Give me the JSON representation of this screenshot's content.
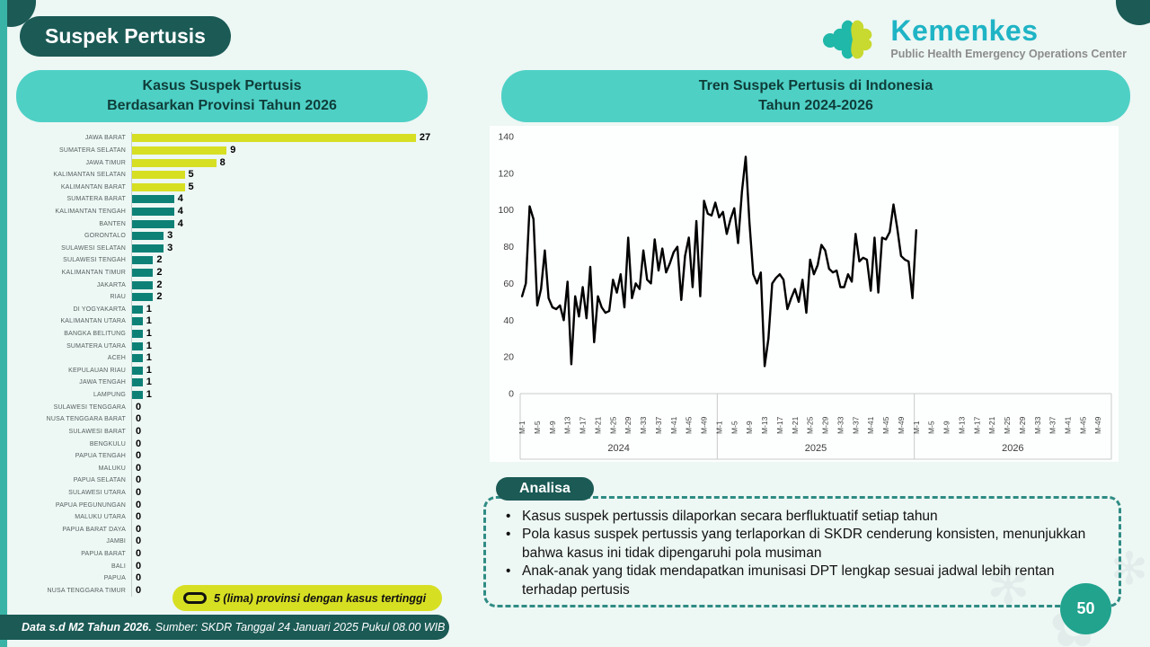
{
  "page": {
    "title": "Suspek Pertusis",
    "page_number": "50",
    "colors": {
      "background": "#edf7f4",
      "dark_teal": "#1b5a55",
      "header_teal": "#4ed0c5",
      "lime": "#d7df23",
      "bar_teal": "#0e8177",
      "page_circle": "#21a38e",
      "line": "#000000"
    }
  },
  "logo": {
    "brand": "Kemenkes",
    "subtitle": "Public Health Emergency Operations Center"
  },
  "left_panel": {
    "header_line1": "Kasus Suspek Pertusis",
    "header_line2": "Berdasarkan Provinsi Tahun 2026",
    "legend_label": "5 (lima) provinsi dengan kasus tertinggi"
  },
  "right_panel": {
    "header_line1": "Tren Suspek Pertusis di Indonesia",
    "header_line2": "Tahun 2024-2026"
  },
  "analysis": {
    "header": "Analisa",
    "bullets": [
      "Kasus suspek pertussis dilaporkan secara berfluktuatif setiap tahun",
      "Pola kasus suspek pertussis yang terlaporkan di SKDR cenderung konsisten, menunjukkan bahwa kasus ini tidak dipengaruhi pola musiman",
      "Anak-anak yang tidak mendapatkan imunisasi DPT lengkap sesuai jadwal lebih rentan terhadap pertusis"
    ]
  },
  "footer": {
    "bold_text": "Data s.d M2 Tahun 2026.",
    "source_text": "Sumber: SKDR Tanggal 24 Januari 2025 Pukul 08.00 WIB"
  },
  "chart_data": [
    {
      "type": "bar",
      "orientation": "horizontal",
      "title": "Kasus Suspek Pertusis Berdasarkan Provinsi Tahun 2026",
      "highlight_top_n": 5,
      "highlight_color": "#d7df23",
      "bar_color": "#0e8177",
      "value_labels": true,
      "categories": [
        "JAWA BARAT",
        "SUMATERA SELATAN",
        "JAWA TIMUR",
        "KALIMANTAN SELATAN",
        "KALIMANTAN BARAT",
        "SUMATERA BARAT",
        "KALIMANTAN TENGAH",
        "BANTEN",
        "GORONTALO",
        "SULAWESI SELATAN",
        "SULAWESI TENGAH",
        "KALIMANTAN TIMUR",
        "JAKARTA",
        "RIAU",
        "DI YOGYAKARTA",
        "KALIMANTAN UTARA",
        "BANGKA BELITUNG",
        "SUMATERA UTARA",
        "ACEH",
        "KEPULAUAN RIAU",
        "JAWA TENGAH",
        "LAMPUNG",
        "SULAWESI TENGGARA",
        "NUSA TENGGARA BARAT",
        "SULAWESI BARAT",
        "BENGKULU",
        "PAPUA TENGAH",
        "MALUKU",
        "PAPUA SELATAN",
        "SULAWESI UTARA",
        "PAPUA PEGUNUNGAN",
        "MALUKU UTARA",
        "PAPUA BARAT DAYA",
        "JAMBI",
        "PAPUA BARAT",
        "BALI",
        "PAPUA",
        "NUSA TENGGARA TIMUR"
      ],
      "values": [
        27,
        9,
        8,
        5,
        5,
        4,
        4,
        4,
        3,
        3,
        2,
        2,
        2,
        2,
        1,
        1,
        1,
        1,
        1,
        1,
        1,
        1,
        0,
        0,
        0,
        0,
        0,
        0,
        0,
        0,
        0,
        0,
        0,
        0,
        0,
        0,
        0,
        0
      ]
    },
    {
      "type": "line",
      "title": "Tren Suspek Pertusis di Indonesia Tahun 2024-2026",
      "ylim": [
        0,
        140
      ],
      "yticks": [
        0,
        20,
        40,
        60,
        80,
        100,
        120,
        140
      ],
      "grid": false,
      "x_tick_labels": [
        "M-1",
        "M-5",
        "M-9",
        "M-13",
        "M-17",
        "M-21",
        "M-25",
        "M-29",
        "M-33",
        "M-37",
        "M-41",
        "M-45",
        "M-49"
      ],
      "year_groups": [
        "2024",
        "2025",
        "2026"
      ],
      "weeks_per_year": 52,
      "line_color": "#000000",
      "values_2024": [
        53,
        60,
        102,
        95,
        48,
        57,
        78,
        52,
        47,
        46,
        48,
        40,
        61,
        16,
        53,
        42,
        58,
        41,
        69,
        28,
        53,
        47,
        44,
        45,
        62,
        55,
        65,
        47,
        85,
        52,
        60,
        57,
        78,
        62,
        60,
        84,
        67,
        79,
        66,
        71,
        77,
        80,
        51,
        75,
        85,
        58,
        94,
        53,
        105,
        98,
        97,
        104
      ],
      "values_2025": [
        96,
        99,
        87,
        95,
        101,
        82,
        110,
        129,
        93,
        65,
        60,
        66,
        15,
        30,
        60,
        63,
        65,
        62,
        46,
        52,
        57,
        50,
        62,
        44,
        73,
        65,
        70,
        81,
        78,
        68,
        66,
        67,
        58,
        58,
        65,
        61,
        87,
        72,
        74,
        73,
        56,
        85,
        55,
        85,
        84,
        88,
        103,
        90,
        75,
        73,
        72,
        52
      ],
      "values_2026": [
        89
      ]
    }
  ]
}
